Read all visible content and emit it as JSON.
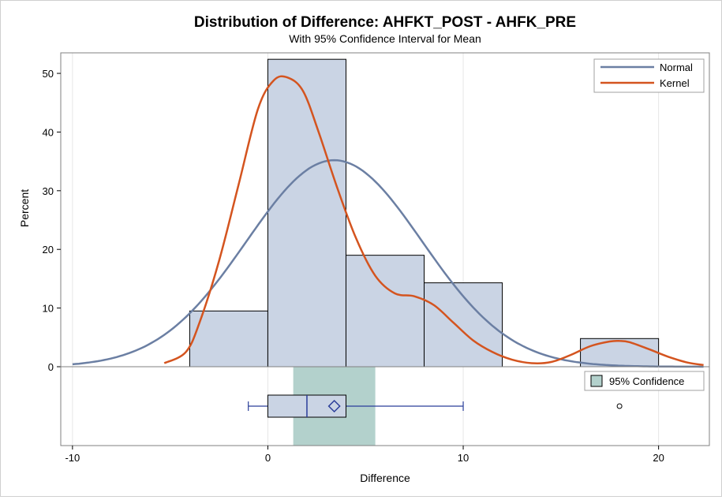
{
  "chart_data": {
    "type": "histogram",
    "title": "Distribution of Difference: AHFKT_POST - AHFK_PRE",
    "subtitle": "With 95% Confidence Interval for Mean",
    "xlabel": "Difference",
    "ylabel": "Percent",
    "xlim": [
      -10.6,
      22.6
    ],
    "ylim": [
      0,
      53.5
    ],
    "x_ticks": [
      "-10",
      "0",
      "10",
      "20"
    ],
    "y_ticks": [
      "0",
      "10",
      "20",
      "30",
      "40",
      "50"
    ],
    "grid": true,
    "histogram": {
      "bin_edges": [
        -4,
        0,
        4,
        8,
        12,
        16,
        20
      ],
      "percent": [
        9.5,
        52.4,
        19.0,
        14.3,
        0,
        4.8
      ],
      "fill": "#cad4e4",
      "edge": "#000000"
    },
    "series": [
      {
        "name": "Normal",
        "color": "#6b7fa3",
        "mean": 3.4,
        "sd": 4.5,
        "peak": 35.2,
        "x_range": [
          -10,
          22.3
        ]
      },
      {
        "name": "Kernel",
        "color": "#d4541f",
        "x": [
          -5.3,
          -4.2,
          -3.5,
          -2.5,
          -1.5,
          -0.5,
          0.3,
          1.0,
          1.8,
          2.6,
          3.5,
          4.5,
          5.5,
          6.5,
          7.5,
          8.5,
          9.5,
          10.5,
          11.5,
          12.5,
          13.5,
          14.5,
          15.5,
          16.5,
          17.5,
          18.0,
          18.5,
          19.5,
          20.5,
          21.5,
          22.3
        ],
        "y": [
          0.6,
          2.5,
          7.5,
          18.0,
          31.0,
          44.0,
          48.8,
          49.3,
          47.0,
          40.0,
          31.0,
          22.0,
          15.5,
          12.5,
          12.0,
          10.5,
          7.5,
          4.5,
          2.5,
          1.2,
          0.6,
          0.8,
          2.0,
          3.5,
          4.3,
          4.4,
          4.2,
          3.0,
          1.7,
          0.7,
          0.3
        ]
      }
    ],
    "legend": {
      "placement": "top-right",
      "entries": [
        "Normal",
        "Kernel"
      ]
    },
    "boxplot": {
      "min": -1,
      "q1": 0,
      "median": 2,
      "mean": 3.4,
      "q3": 4,
      "whisker_max": 10,
      "outliers": [
        18
      ],
      "fill": "#cad4e4",
      "whisker_color": "#2a3e9a"
    },
    "confidence_band": {
      "label": "95% Confidence",
      "lower": 1.3,
      "upper": 5.5,
      "color": "#b3d1cc"
    }
  }
}
